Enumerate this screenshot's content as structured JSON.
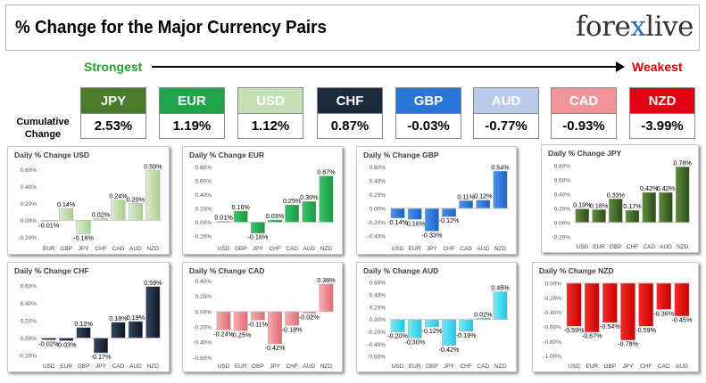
{
  "header": {
    "title": "% Change for the Major Currency Pairs",
    "logo_left": "fore",
    "logo_x": "x",
    "logo_right": "live"
  },
  "ranking": {
    "strongest_label": "Strongest",
    "weakest_label": "Weakest",
    "row_label_line1": "Cumulative",
    "row_label_line2": "Change",
    "currencies": [
      {
        "code": "JPY",
        "value": "2.53%",
        "color": "#4a7a2c"
      },
      {
        "code": "EUR",
        "value": "1.19%",
        "color": "#21a54c"
      },
      {
        "code": "USD",
        "value": "1.12%",
        "color": "#c5e0b4"
      },
      {
        "code": "CHF",
        "value": "0.87%",
        "color": "#1b2a3c"
      },
      {
        "code": "GBP",
        "value": "-0.03%",
        "color": "#2a74d6"
      },
      {
        "code": "AUD",
        "value": "-0.77%",
        "color": "#b9cbea"
      },
      {
        "code": "CAD",
        "value": "-0.93%",
        "color": "#f0969b"
      },
      {
        "code": "NZD",
        "value": "-3.99%",
        "color": "#e00010"
      }
    ]
  },
  "chart_data": [
    {
      "type": "bar",
      "title": "Daily % Change USD",
      "categories": [
        "EUR",
        "GBP",
        "JPY",
        "CHF",
        "CAD",
        "AUD",
        "NZD"
      ],
      "values": [
        -0.01,
        0.14,
        -0.16,
        0.02,
        0.24,
        0.2,
        0.59
      ],
      "labels": [
        "-0.01%",
        "0.14%",
        "-0.16%",
        "0.02%",
        "0.24%",
        "0.20%",
        "0.59%"
      ],
      "yticks": [
        -0.2,
        0.0,
        0.2,
        0.4,
        0.6
      ],
      "ytick_labels": [
        "-0.20%",
        "0.00%",
        "0.20%",
        "0.40%",
        "0.60%"
      ],
      "ylim": [
        -0.25,
        0.68
      ],
      "grid": false,
      "colors": [
        "#dbeccf",
        "#a9d08e"
      ]
    },
    {
      "type": "bar",
      "title": "Daily % Change EUR",
      "categories": [
        "USD",
        "GBP",
        "JPY",
        "CHF",
        "CAD",
        "AUD",
        "NZD"
      ],
      "values": [
        0.01,
        0.16,
        -0.16,
        0.03,
        0.25,
        0.3,
        0.67
      ],
      "labels": [
        "0.01%",
        "0.16%",
        "-0.16%",
        "0.03%",
        "0.25%",
        "0.30%",
        "0.67%"
      ],
      "yticks": [
        -0.2,
        0.0,
        0.2,
        0.4,
        0.6,
        0.8
      ],
      "ytick_labels": [
        "-0.20%",
        "0.00%",
        "0.20%",
        "0.40%",
        "0.60%",
        "0.80%"
      ],
      "ylim": [
        -0.28,
        0.86
      ],
      "grid": false,
      "colors": [
        "#3ec26a",
        "#169a40"
      ]
    },
    {
      "type": "bar",
      "title": "Daily % Change GBP",
      "categories": [
        "USD",
        "EUR",
        "JPY",
        "CHF",
        "CAD",
        "AUD",
        "NZD"
      ],
      "values": [
        -0.14,
        -0.16,
        -0.33,
        -0.12,
        0.11,
        0.12,
        0.54
      ],
      "labels": [
        "-0.14%",
        "-0.16%",
        "-0.33%",
        "-0.12%",
        "0.11%",
        "0.12%",
        "0.54%"
      ],
      "yticks": [
        -0.4,
        -0.2,
        0.0,
        0.2,
        0.4,
        0.6
      ],
      "ytick_labels": [
        "-0.40%",
        "-0.20%",
        "0.00%",
        "0.20%",
        "0.40%",
        "0.60%"
      ],
      "ylim": [
        -0.48,
        0.66
      ],
      "grid": false,
      "colors": [
        "#4a94ea",
        "#1c62c8"
      ]
    },
    {
      "type": "bar",
      "title": "Daily % Change JPY",
      "categories": [
        "USD",
        "EUR",
        "GBP",
        "CHF",
        "CAD",
        "AUD",
        "NZD"
      ],
      "values": [
        0.19,
        0.18,
        0.33,
        0.17,
        0.42,
        0.42,
        0.78
      ],
      "labels": [
        "0.19%",
        "0.18%",
        "0.33%",
        "0.17%",
        "0.42%",
        "0.42%",
        "0.78%"
      ],
      "yticks": [
        -0.2,
        0.0,
        0.2,
        0.4,
        0.6,
        0.8
      ],
      "ytick_labels": [
        "-0.20%",
        "0.00%",
        "0.20%",
        "0.40%",
        "0.60%",
        "0.80%"
      ],
      "ylim": [
        -0.24,
        0.86
      ],
      "grid": false,
      "colors": [
        "#5e8c3c",
        "#2e4d1a"
      ]
    },
    {
      "type": "bar",
      "title": "Daily % Change CHF",
      "categories": [
        "USD",
        "EUR",
        "GBP",
        "JPY",
        "CAD",
        "AUD",
        "NZD"
      ],
      "values": [
        -0.02,
        -0.03,
        0.12,
        -0.17,
        0.18,
        0.19,
        0.59
      ],
      "labels": [
        "-0.02%",
        "-0.03%",
        "0.12%",
        "-0.17%",
        "0.18%",
        "0.19%",
        "0.59%"
      ],
      "yticks": [
        -0.2,
        0.0,
        0.2,
        0.4,
        0.6
      ],
      "ytick_labels": [
        "-0.20%",
        "0.00%",
        "0.20%",
        "0.40%",
        "0.60%"
      ],
      "ylim": [
        -0.24,
        0.68
      ],
      "grid": false,
      "colors": [
        "#34475f",
        "#0e1826"
      ]
    },
    {
      "type": "bar",
      "title": "Daily % Change CAD",
      "categories": [
        "USD",
        "EUR",
        "GBP",
        "JPY",
        "CHF",
        "AUD",
        "NZD"
      ],
      "values": [
        -0.24,
        -0.25,
        -0.11,
        -0.42,
        -0.18,
        -0.02,
        0.36
      ],
      "labels": [
        "-0.24%",
        "-0.25%",
        "-0.11%",
        "-0.42%",
        "-0.18%",
        "-0.02%",
        "0.36%"
      ],
      "yticks": [
        -0.6,
        -0.4,
        -0.2,
        0.0,
        0.2,
        0.4
      ],
      "ytick_labels": [
        "-0.60%",
        "-0.40%",
        "-0.20%",
        "0.00%",
        "0.20%",
        "0.40%"
      ],
      "ylim": [
        -0.62,
        0.43
      ],
      "grid": false,
      "colors": [
        "#f6aeb2",
        "#e26a72"
      ]
    },
    {
      "type": "bar",
      "title": "Daily % Change AUD",
      "categories": [
        "USD",
        "EUR",
        "GBP",
        "JPY",
        "CHF",
        "CAD",
        "NZD"
      ],
      "values": [
        -0.2,
        -0.3,
        -0.12,
        -0.42,
        -0.19,
        0.02,
        0.45
      ],
      "labels": [
        "-0.20%",
        "-0.30%",
        "-0.12%",
        "-0.42%",
        "-0.19%",
        "0.02%",
        "0.45%"
      ],
      "yticks": [
        -0.6,
        -0.4,
        -0.2,
        0.0,
        0.2,
        0.4,
        0.6
      ],
      "ytick_labels": [
        "-0.60%",
        "-0.40%",
        "-0.20%",
        "0.00%",
        "0.20%",
        "0.40%",
        "0.60%"
      ],
      "ylim": [
        -0.64,
        0.66
      ],
      "grid": false,
      "colors": [
        "#7fe6f6",
        "#1ec8e6"
      ]
    },
    {
      "type": "bar",
      "title": "Daily % Change NZD",
      "categories": [
        "USD",
        "EUR",
        "GBP",
        "JPY",
        "CHF",
        "CAD",
        "AUD"
      ],
      "values": [
        -0.59,
        -0.67,
        -0.54,
        -0.78,
        -0.59,
        -0.36,
        -0.45
      ],
      "labels": [
        "-0.59%",
        "-0.67%",
        "-0.54%",
        "-0.78%",
        "-0.59%",
        "-0.36%",
        "-0.45%"
      ],
      "yticks": [
        -1.0,
        -0.8,
        -0.6,
        -0.4,
        -0.2,
        0.0
      ],
      "ytick_labels": [
        "-1.00%",
        "-0.80%",
        "-0.60%",
        "-0.40%",
        "-0.20%",
        "0.00%"
      ],
      "ylim": [
        -1.04,
        0.06
      ],
      "grid": false,
      "colors": [
        "#f52a2a",
        "#c80000"
      ]
    }
  ]
}
